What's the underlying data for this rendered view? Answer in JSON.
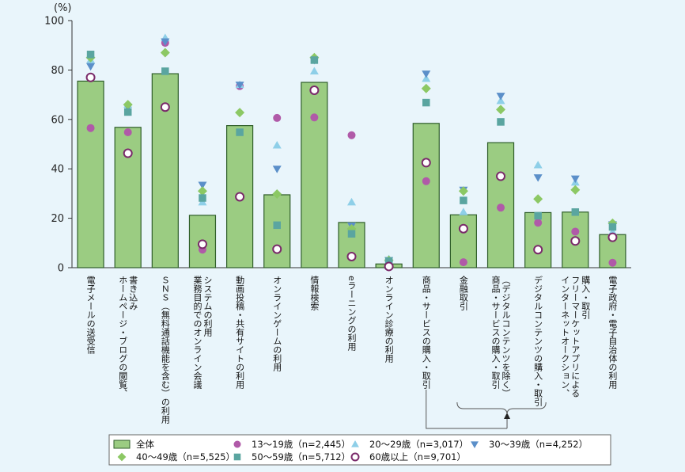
{
  "chart_data": {
    "type": "bar",
    "y_unit": "(%)",
    "ylim": [
      0,
      100
    ],
    "yticks": [
      0,
      20,
      40,
      60,
      80,
      100
    ],
    "grid": false,
    "categories": [
      "電子メールの送受信",
      "ホームページ・ブログの閲覧、書き込み",
      "ＳＮＳ（無料通話機能を含む）の利用",
      "業務目的でのオンライン会議システムの利用",
      "動画投稿・共有サイトの利用",
      "オンラインゲームの利用",
      "情報検索",
      "eラーニングの利用",
      "オンライン診療の利用",
      "商品・サービスの購入・取引",
      "金融取引",
      "商品・サービスの購入・取引（デジタルコンテンツを除く）",
      "デジタルコンテンツの購入・取引",
      "インターネットオークション、フリーマーケットアプリによる購入・取引",
      "電子政府・電子自治体の利用"
    ],
    "category_lines": [
      [
        "電子メールの送受信"
      ],
      [
        "ホームページ・ブログの閲覧、",
        "書き込み"
      ],
      [
        "ＳＮＳ（無料通話機能を含む）の利用"
      ],
      [
        "業務目的でのオンライン会議",
        "システムの利用"
      ],
      [
        "動画投稿・共有サイトの利用"
      ],
      [
        "オンラインゲームの利用"
      ],
      [
        "情報検索"
      ],
      [
        "eラーニングの利用"
      ],
      [
        "オンライン診療の利用"
      ],
      [
        "商品・サービスの購入・取引"
      ],
      [
        "金融取引"
      ],
      [
        "商品・サービスの購入・取引",
        "（デジタルコンテンツを除く）"
      ],
      [
        "デジタルコンテンツの購入・取引"
      ],
      [
        "インターネットオークション、",
        "フリーマーケットアプリによる",
        "購入・取引"
      ],
      [
        "電子政府・電子自治体の利用"
      ]
    ],
    "series": [
      {
        "name": "全体",
        "kind": "bar",
        "color": "#9bcc82",
        "values": [
          75.5,
          56.8,
          78.5,
          21.2,
          57.5,
          29.5,
          75.0,
          18.3,
          1.5,
          58.4,
          21.4,
          50.6,
          22.3,
          22.5,
          13.4
        ]
      },
      {
        "name": "13～19歳（n=2,445）",
        "kind": "circle",
        "color": "#b05aa8",
        "values": [
          56.5,
          54.8,
          91.0,
          7.3,
          73.5,
          60.6,
          60.8,
          53.6,
          0.5,
          35.0,
          2.2,
          24.3,
          18.2,
          14.6,
          2.0
        ]
      },
      {
        "name": "20～29歳（n=3,017）",
        "kind": "triangle-up",
        "color": "#8ecfe8",
        "values": [
          84.0,
          66.0,
          93.0,
          26.5,
          74.0,
          49.5,
          79.5,
          26.5,
          3.5,
          76.5,
          22.5,
          67.5,
          41.5,
          34.5,
          14.5
        ]
      },
      {
        "name": "30～39歳（n=4,252）",
        "kind": "triangle-down",
        "color": "#5b8fc9",
        "values": [
          81.5,
          65.0,
          91.5,
          33.5,
          74.0,
          40.0,
          84.0,
          17.0,
          3.0,
          78.5,
          31.5,
          69.5,
          36.5,
          36.0,
          17.5
        ]
      },
      {
        "name": "40～49歳（n=5,525）",
        "kind": "diamond",
        "color": "#8cc864",
        "values": [
          85.0,
          66.0,
          87.0,
          31.0,
          62.8,
          29.8,
          85.0,
          15.7,
          3.0,
          72.5,
          31.0,
          64.0,
          27.8,
          31.5,
          18.0
        ]
      },
      {
        "name": "50～59歳（n=5,712）",
        "kind": "square",
        "color": "#5aa5a0",
        "values": [
          86.3,
          63.0,
          79.5,
          28.2,
          54.8,
          17.2,
          84.0,
          13.7,
          2.7,
          66.8,
          27.2,
          59.0,
          21.0,
          22.5,
          16.5
        ]
      },
      {
        "name": "60歳以上（n=9,701）",
        "kind": "open-circle",
        "color": "#7a2a6a",
        "values": [
          77.0,
          46.3,
          65.0,
          9.5,
          28.7,
          7.5,
          71.8,
          4.5,
          0.5,
          42.5,
          15.8,
          37.0,
          7.3,
          10.8,
          12.3
        ]
      }
    ]
  }
}
